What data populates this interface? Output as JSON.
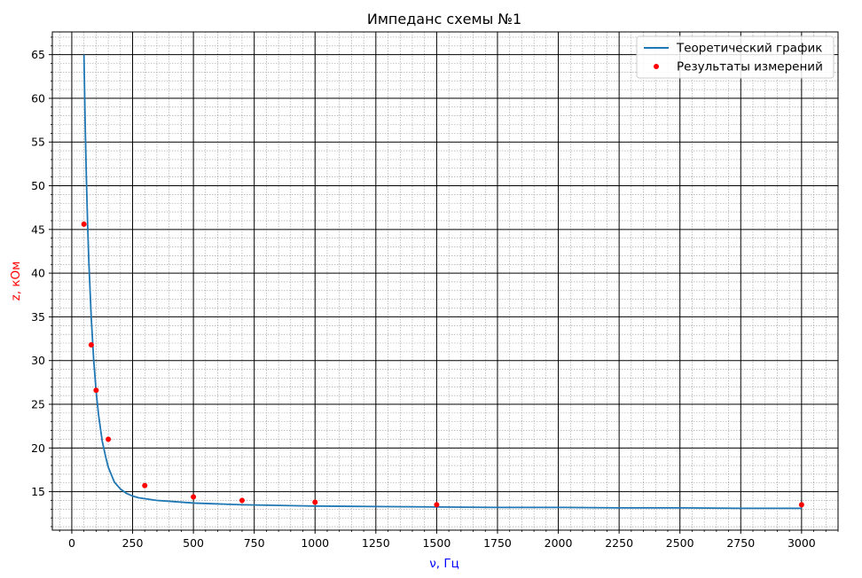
{
  "chart_data": {
    "type": "line",
    "title": "Импеданс схемы №1",
    "xlabel": "ν, Гц",
    "ylabel": "z, кОм",
    "xlabel_color": "#0000ff",
    "ylabel_color": "#ff0000",
    "xlim": [
      -80,
      3150
    ],
    "ylim": [
      10.6,
      67.6
    ],
    "x_ticks": [
      0,
      250,
      500,
      750,
      1000,
      1250,
      1500,
      1750,
      2000,
      2250,
      2500,
      2750,
      3000
    ],
    "x_tick_labels": [
      "0",
      "250",
      "500",
      "750",
      "1000",
      "1250",
      "1500",
      "1750",
      "2000",
      "2250",
      "2500",
      "2750",
      "3000"
    ],
    "y_ticks": [
      15,
      20,
      25,
      30,
      35,
      40,
      45,
      50,
      55,
      60,
      65
    ],
    "y_tick_labels": [
      "15",
      "20",
      "25",
      "30",
      "35",
      "40",
      "45",
      "50",
      "55",
      "60",
      "65"
    ],
    "major_grid": true,
    "minor_grid": true,
    "legend_position": "top-right",
    "series": [
      {
        "name": "Теоретический график",
        "kind": "line",
        "color": "#1f77b4",
        "x": [
          50,
          55,
          60,
          65,
          70,
          80,
          90,
          100,
          110,
          125,
          140,
          150,
          175,
          200,
          225,
          250,
          275,
          300,
          350,
          400,
          450,
          500,
          600,
          700,
          800,
          900,
          1000,
          1250,
          1500,
          1750,
          2000,
          2250,
          2500,
          2750,
          3000
        ],
        "y": [
          65.0,
          57.1,
          50.9,
          45.7,
          41.4,
          34.9,
          30.1,
          26.5,
          23.8,
          20.8,
          18.9,
          17.8,
          16.1,
          15.3,
          14.8,
          14.5,
          14.3,
          14.2,
          14.0,
          13.9,
          13.8,
          13.7,
          13.6,
          13.5,
          13.45,
          13.4,
          13.35,
          13.3,
          13.25,
          13.2,
          13.2,
          13.15,
          13.15,
          13.1,
          13.1
        ]
      },
      {
        "name": "Результаты измерений",
        "kind": "scatter",
        "color": "#ff0000",
        "x": [
          50,
          80,
          100,
          150,
          300,
          500,
          700,
          1000,
          1500,
          3000
        ],
        "y": [
          45.6,
          31.8,
          26.6,
          21.0,
          15.7,
          14.4,
          14.0,
          13.8,
          13.5,
          13.5
        ]
      }
    ]
  }
}
